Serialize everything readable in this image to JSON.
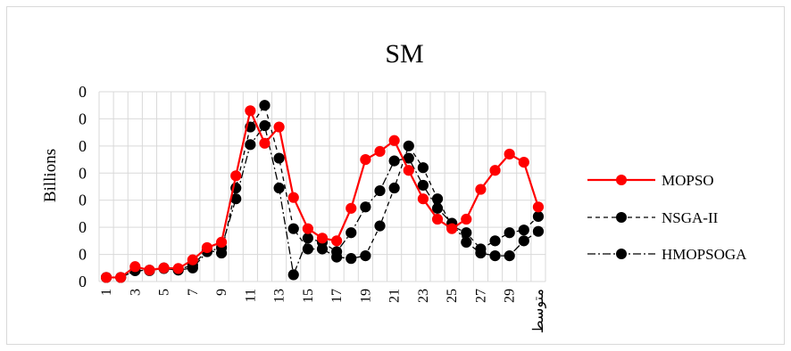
{
  "chart_data": {
    "type": "line",
    "title": "SM",
    "ylabel": "Billions",
    "xlabel": "",
    "ylim": [
      0,
      7
    ],
    "y_tick_labels": [
      "0",
      "0",
      "0",
      "0",
      "0",
      "0",
      "0",
      "0"
    ],
    "grid": true,
    "legend_position": "right",
    "categories": [
      "1",
      "2",
      "3",
      "4",
      "5",
      "6",
      "7",
      "8",
      "9",
      "10",
      "11",
      "12",
      "13",
      "14",
      "15",
      "16",
      "17",
      "18",
      "19",
      "20",
      "21",
      "22",
      "23",
      "24",
      "25",
      "26",
      "27",
      "28",
      "29",
      "30",
      "متوسط"
    ],
    "x_tick_labels": [
      "1",
      "",
      "3",
      "",
      "5",
      "",
      "7",
      "",
      "9",
      "",
      "11",
      "",
      "13",
      "",
      "15",
      "",
      "17",
      "",
      "19",
      "",
      "21",
      "",
      "23",
      "",
      "25",
      "",
      "27",
      "",
      "29",
      "",
      "متوسط"
    ],
    "series": [
      {
        "name": "MOPSO",
        "color": "#ff0000",
        "line_style": "solid",
        "marker_color": "#ff0000",
        "values": [
          0.15,
          0.15,
          0.55,
          0.42,
          0.5,
          0.48,
          0.8,
          1.25,
          1.45,
          3.9,
          6.3,
          5.1,
          5.7,
          3.1,
          1.95,
          1.6,
          1.5,
          2.7,
          4.5,
          4.8,
          5.2,
          4.1,
          3.05,
          2.3,
          1.95,
          2.3,
          3.4,
          4.1,
          4.7,
          4.4,
          2.75
        ]
      },
      {
        "name": "NSGA-II",
        "color": "#000000",
        "line_style": "dashed",
        "marker_color": "#000000",
        "values": [
          0.15,
          0.15,
          0.4,
          0.4,
          0.5,
          0.45,
          0.6,
          1.15,
          1.05,
          3.45,
          5.7,
          6.5,
          4.55,
          1.95,
          1.2,
          1.2,
          0.9,
          0.85,
          0.95,
          2.05,
          3.45,
          5.0,
          4.2,
          3.05,
          2.05,
          1.8,
          1.2,
          1.5,
          1.8,
          1.9,
          2.4
        ]
      },
      {
        "name": "HMOPSOGA",
        "color": "#000000",
        "line_style": "dashdot",
        "marker_color": "#000000",
        "values": [
          0.15,
          0.15,
          0.4,
          0.42,
          0.48,
          0.42,
          0.5,
          1.1,
          1.25,
          3.05,
          5.05,
          5.75,
          3.45,
          0.25,
          1.6,
          1.45,
          1.1,
          1.8,
          2.75,
          3.35,
          4.45,
          4.55,
          3.55,
          2.7,
          2.15,
          1.45,
          1.05,
          0.95,
          0.95,
          1.5,
          1.85
        ]
      }
    ]
  }
}
